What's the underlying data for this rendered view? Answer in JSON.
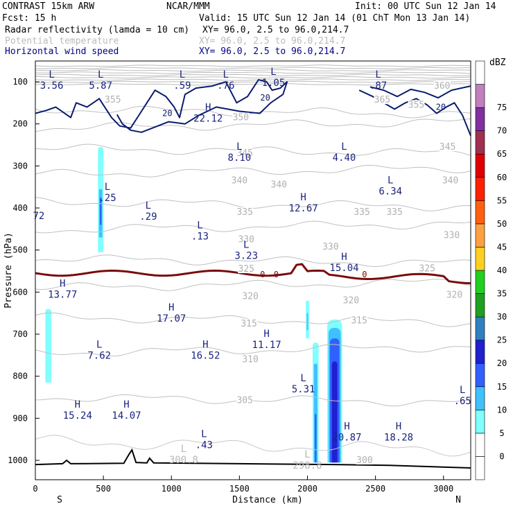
{
  "header": {
    "model": "CONTRAST 15km ARW",
    "center": "NCAR/MMM",
    "init": "Init: 00 UTC Sun 12 Jan 14",
    "fcst": "Fcst:   15 h",
    "valid": "Valid: 15 UTC Sun 12 Jan 14 (01 ChT Mon 13 Jan 14)"
  },
  "fields": [
    {
      "name": "Radar reflectivity (lamda = 10 cm)",
      "xy": "XY=  96.0,  2.5 to  96.0,214.7",
      "color": "#000000"
    },
    {
      "name": "Potential temperature",
      "xy": "XY=  96.0,  2.5 to  96.0,214.7",
      "color": "#bbbbbb"
    },
    {
      "name": "Horizontal wind speed",
      "xy": "XY=  96.0,  2.5 to  96.0,214.7",
      "color": "#000080"
    }
  ],
  "chart_data": {
    "type": "cross-section",
    "xlabel": "Distance (km)",
    "ylabel": "Pressure (hPa)",
    "xlim": [
      0,
      3200
    ],
    "ylim": [
      1050,
      50
    ],
    "x_ticks": [
      0,
      500,
      1000,
      1500,
      2000,
      2500,
      3000
    ],
    "y_ticks": [
      100,
      200,
      300,
      400,
      500,
      600,
      700,
      800,
      900,
      1000
    ],
    "left_end": "S",
    "right_end": "N",
    "colorbar": {
      "unit": "dBZ",
      "levels": [
        "0",
        "5",
        "10",
        "15",
        "20",
        "25",
        "30",
        "35",
        "40",
        "45",
        "50",
        "55",
        "60",
        "65",
        "70",
        "75"
      ],
      "colors": [
        "#ffffff",
        "#ffffff",
        "#80ffff",
        "#40c0ff",
        "#3060ff",
        "#2020d0",
        "#3080c0",
        "#20a020",
        "#20d020",
        "#ffd020",
        "#ffa040",
        "#ff6010",
        "#ff2000",
        "#e00000",
        "#a03050",
        "#8030a0",
        "#c080c0",
        "#ffffff"
      ]
    },
    "theta_labels": [
      {
        "v": "355",
        "x": 570,
        "p": 148
      },
      {
        "v": "365",
        "x": 2550,
        "p": 148
      },
      {
        "v": "360",
        "x": 2990,
        "p": 115
      },
      {
        "v": "355",
        "x": 2800,
        "p": 160
      },
      {
        "v": "350",
        "x": 1510,
        "p": 190
      },
      {
        "v": "345",
        "x": 3030,
        "p": 260
      },
      {
        "v": "345",
        "x": 1540,
        "p": 275
      },
      {
        "v": "340",
        "x": 1500,
        "p": 340
      },
      {
        "v": "340",
        "x": 1790,
        "p": 350
      },
      {
        "v": "340",
        "x": 3050,
        "p": 340
      },
      {
        "v": "335",
        "x": 1540,
        "p": 415
      },
      {
        "v": "335",
        "x": 2400,
        "p": 415
      },
      {
        "v": "335",
        "x": 2640,
        "p": 415
      },
      {
        "v": "330",
        "x": 1550,
        "p": 480
      },
      {
        "v": "330",
        "x": 2170,
        "p": 497
      },
      {
        "v": "330",
        "x": 3060,
        "p": 470
      },
      {
        "v": "325",
        "x": 1550,
        "p": 550
      },
      {
        "v": "325",
        "x": 2880,
        "p": 549
      },
      {
        "v": "320",
        "x": 1580,
        "p": 615
      },
      {
        "v": "320",
        "x": 2320,
        "p": 625
      },
      {
        "v": "320",
        "x": 3080,
        "p": 612
      },
      {
        "v": "315",
        "x": 1570,
        "p": 680
      },
      {
        "v": "315",
        "x": 2380,
        "p": 673
      },
      {
        "v": "310",
        "x": 1580,
        "p": 765
      },
      {
        "v": "305",
        "x": 1540,
        "p": 862
      },
      {
        "v": "300",
        "x": 2420,
        "p": 1005
      }
    ],
    "wind_labels": [
      {
        "v": "20",
        "x": 970,
        "p": 175
      },
      {
        "v": "20",
        "x": 1690,
        "p": 138
      },
      {
        "v": "20",
        "x": 2980,
        "p": 160
      },
      {
        "v": "0",
        "x": 1670,
        "p": 558
      },
      {
        "v": "0",
        "x": 1770,
        "p": 558
      },
      {
        "v": "0",
        "x": 2420,
        "p": 558
      }
    ],
    "wind_extrema": [
      {
        "t": "L",
        "v": "3.56",
        "x": 120,
        "p": 103
      },
      {
        "t": "L",
        "v": "5.87",
        "x": 480,
        "p": 103
      },
      {
        "t": "L",
        "v": ".59",
        "x": 1080,
        "p": 103
      },
      {
        "t": "L",
        "v": ".76",
        "x": 1400,
        "p": 103
      },
      {
        "t": "L",
        "v": "1.05",
        "x": 1750,
        "p": 97
      },
      {
        "t": "L",
        "v": ".87",
        "x": 2520,
        "p": 103
      },
      {
        "t": "H",
        "v": "22.12",
        "x": 1270,
        "p": 182
      },
      {
        "t": "L",
        "v": "8.10",
        "x": 1500,
        "p": 275
      },
      {
        "t": "L",
        "v": "4.40",
        "x": 2270,
        "p": 275
      },
      {
        "t": "L",
        "v": "6.34",
        "x": 2610,
        "p": 355
      },
      {
        "t": "L",
        "v": ".25",
        "x": 530,
        "p": 370
      },
      {
        "t": "L",
        "v": ".29",
        "x": 830,
        "p": 415
      },
      {
        "t": "L",
        "v": ".13",
        "x": 1210,
        "p": 462
      },
      {
        "t": "L",
        "v": "3.23",
        "x": 1550,
        "p": 508
      },
      {
        "t": "H",
        "v": "12.67",
        "x": 1970,
        "p": 395
      },
      {
        "t": "H",
        "v": "15.04",
        "x": 2270,
        "p": 537
      },
      {
        "t": "H",
        "v": "13.77",
        "x": 200,
        "p": 600
      },
      {
        "t": "H",
        "v": "17.07",
        "x": 1000,
        "p": 657
      },
      {
        "t": "H",
        "v": "11.17",
        "x": 1700,
        "p": 720
      },
      {
        "t": "L",
        "v": "7.62",
        "x": 470,
        "p": 745
      },
      {
        "t": "H",
        "v": "16.52",
        "x": 1250,
        "p": 745
      },
      {
        "t": "L",
        "v": "5.31",
        "x": 1970,
        "p": 825
      },
      {
        "t": "H",
        "v": "15.24",
        "x": 310,
        "p": 888
      },
      {
        "t": "H",
        "v": "14.07",
        "x": 670,
        "p": 888
      },
      {
        "t": "L",
        "v": ".65",
        "x": 3140,
        "p": 853
      },
      {
        "t": "H",
        "v": "20.87",
        "x": 2290,
        "p": 940
      },
      {
        "t": "H",
        "v": "18.28",
        "x": 2670,
        "p": 940
      },
      {
        "t": "L",
        "v": ".43",
        "x": 1240,
        "p": 958
      }
    ],
    "theta_extrema": [
      {
        "t": "L",
        "v": "300.8",
        "x": 1090,
        "p": 1000
      },
      {
        "t": "L",
        "v": "298.8",
        "x": 2000,
        "p": 1013
      }
    ],
    "edge_label": {
      "v": "72",
      "x": 25,
      "p": 418
    }
  }
}
